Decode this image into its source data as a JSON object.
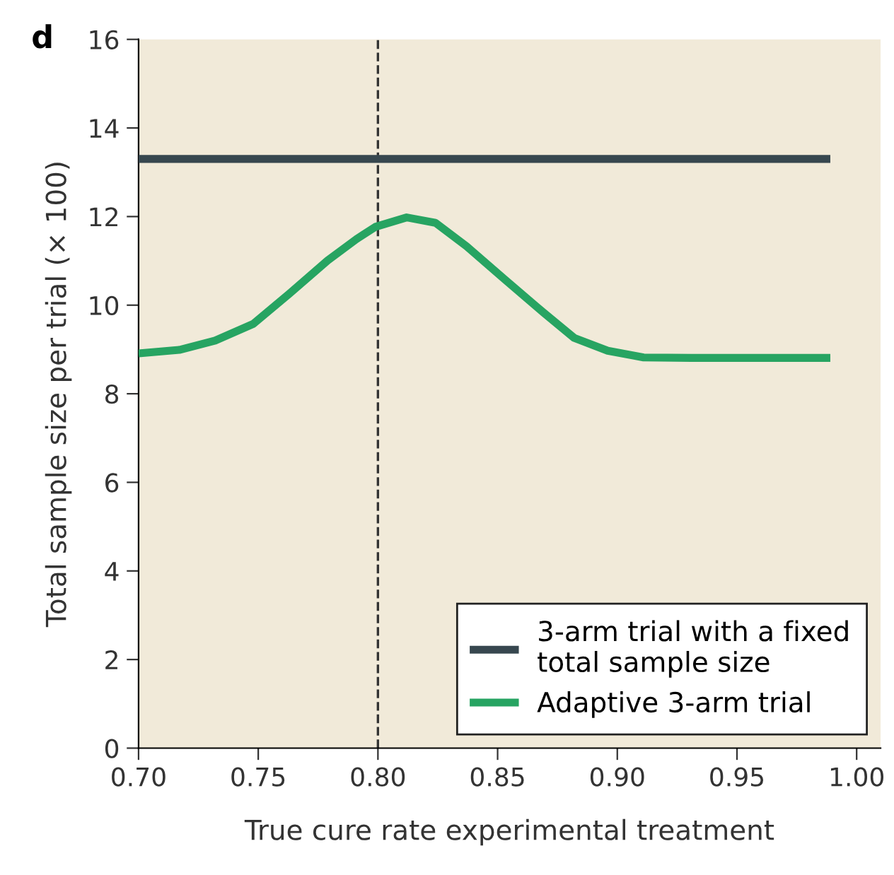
{
  "chart_data": {
    "type": "line",
    "xlabel": "True cure rate experimental treatment",
    "ylabel": "Total sample size per trial (× 100)",
    "annotations": [
      "d"
    ],
    "xlim": [
      0.7,
      1.01
    ],
    "xticks": [
      {
        "value": 0.7,
        "label": "0.70"
      },
      {
        "value": 0.75,
        "label": "0.75"
      },
      {
        "value": 0.8,
        "label": "0.80"
      },
      {
        "value": 0.85,
        "label": "0.85"
      },
      {
        "value": 0.9,
        "label": "0.90"
      },
      {
        "value": 0.95,
        "label": "0.95"
      },
      {
        "value": 1.0,
        "label": "1.00"
      }
    ],
    "ylim": [
      0,
      16
    ],
    "yticks": [
      0,
      2,
      4,
      6,
      8,
      10,
      12,
      14,
      16
    ],
    "series": [
      {
        "name": "3-arm trial with a fixed\ntotal sample size",
        "color": "#37474f",
        "x": [
          0.7,
          0.989
        ],
        "values": [
          13.3,
          13.3
        ]
      },
      {
        "name": "Adaptive 3-arm trial",
        "color": "#27a462",
        "x": [
          0.7,
          0.717,
          0.732,
          0.748,
          0.763,
          0.779,
          0.791,
          0.799,
          0.812,
          0.824,
          0.837,
          0.853,
          0.869,
          0.882,
          0.896,
          0.911,
          0.931,
          0.989
        ],
        "values": [
          8.91,
          8.99,
          9.2,
          9.58,
          10.26,
          11.01,
          11.49,
          11.77,
          11.98,
          11.86,
          11.33,
          10.58,
          9.84,
          9.26,
          8.97,
          8.82,
          8.81,
          8.81
        ]
      }
    ],
    "ref_lines": [
      {
        "axis": "x",
        "value": 0.8,
        "color": "#333333",
        "line_style": "dashed"
      }
    ],
    "grid": false,
    "legend": "bottom right",
    "marker": "none",
    "line_style": "solid"
  }
}
